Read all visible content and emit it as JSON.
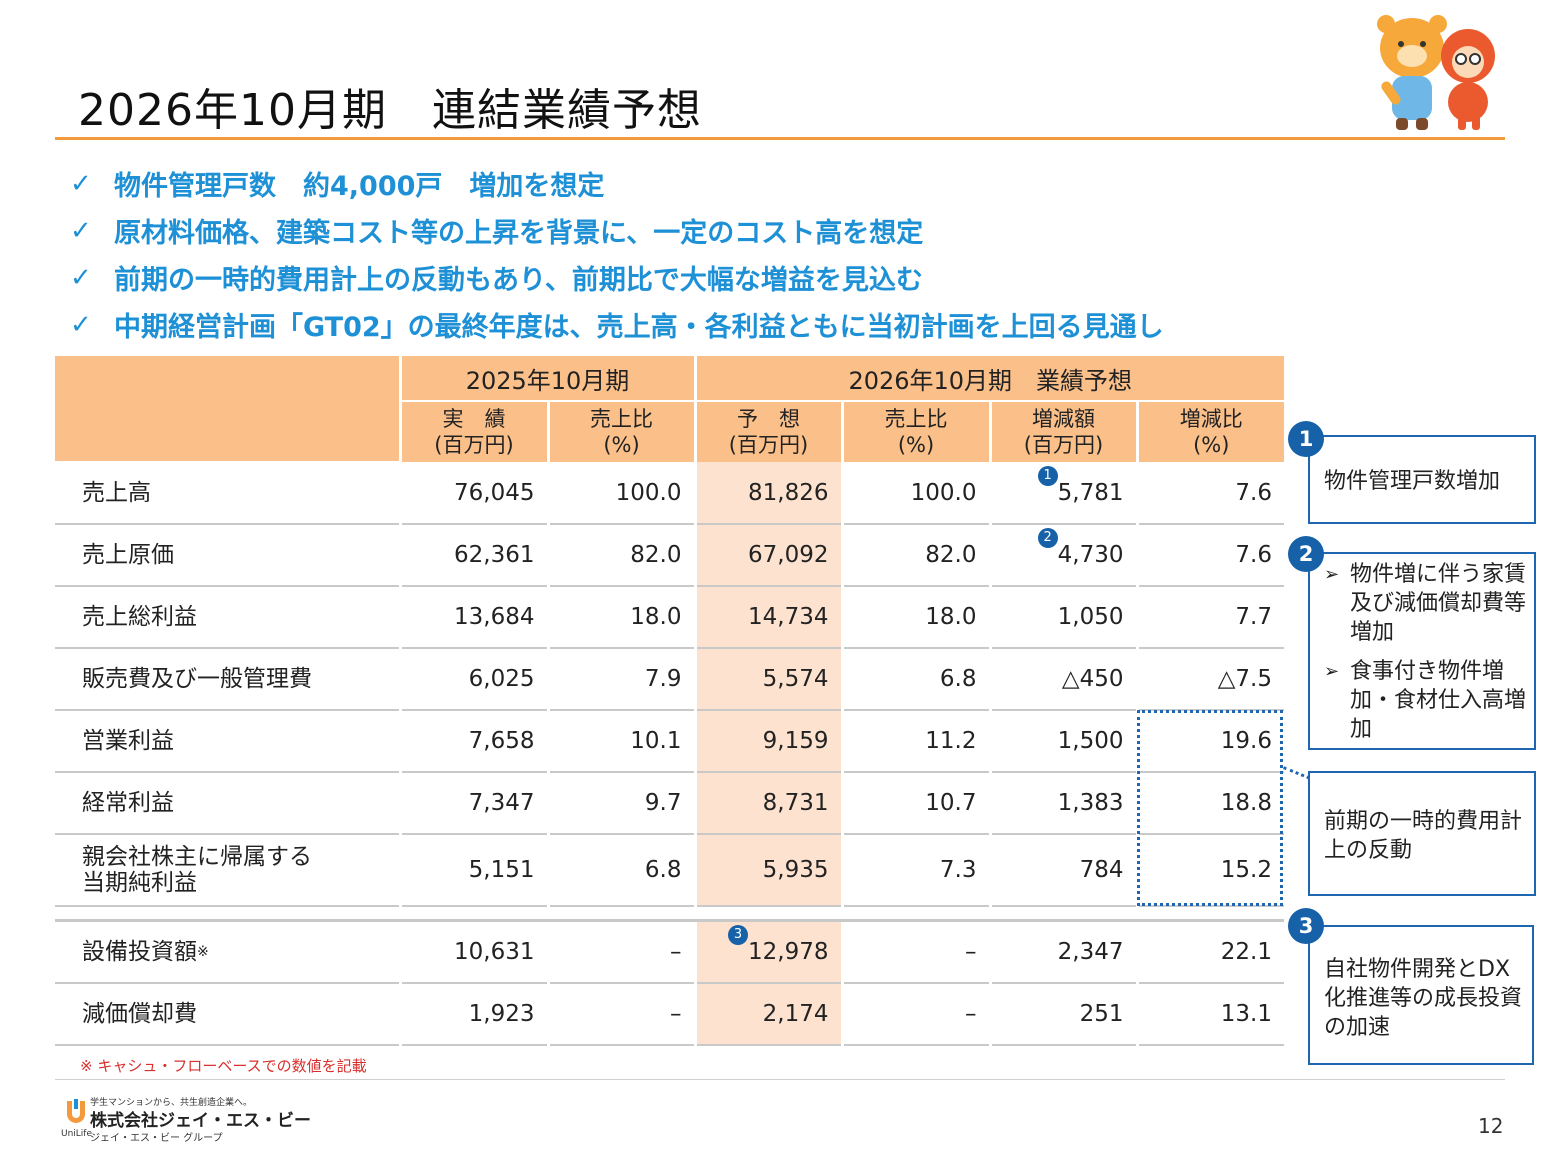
{
  "title": "2026年10月期　連結業績予想",
  "bullets": [
    "物件管理戸数　約4,000戸　増加を想定",
    "原材料価格、建築コスト等の上昇を背景に、一定のコスト高を想定",
    "前期の一時的費用計上の反動もあり、前期比で大幅な増益を見込む",
    "中期経営計画「GT02」の最終年度は、売上高・各利益ともに当初計画を上回る見通し"
  ],
  "check_mark": "✓",
  "table": {
    "group_headers": [
      "2025年10月期",
      "2026年10月期　業績予想"
    ],
    "col_headers": [
      [
        "実　績",
        "(百万円)"
      ],
      [
        "売上比",
        "(%)"
      ],
      [
        "予　想",
        "(百万円)"
      ],
      [
        "売上比",
        "(%)"
      ],
      [
        "増減額",
        "(百万円)"
      ],
      [
        "増減比",
        "(%)"
      ]
    ],
    "rows": [
      {
        "label": "売上高",
        "actual": "76,045",
        "actual_ratio": "100.0",
        "forecast": "81,826",
        "forecast_ratio": "100.0",
        "change": "5,781",
        "change_pct": "7.6",
        "marker": "1"
      },
      {
        "label": "売上原価",
        "actual": "62,361",
        "actual_ratio": "82.0",
        "forecast": "67,092",
        "forecast_ratio": "82.0",
        "change": "4,730",
        "change_pct": "7.6",
        "marker": "2"
      },
      {
        "label": "売上総利益",
        "actual": "13,684",
        "actual_ratio": "18.0",
        "forecast": "14,734",
        "forecast_ratio": "18.0",
        "change": "1,050",
        "change_pct": "7.7"
      },
      {
        "label": "販売費及び一般管理費",
        "actual": "6,025",
        "actual_ratio": "7.9",
        "forecast": "5,574",
        "forecast_ratio": "6.8",
        "change": "△450",
        "change_pct": "△7.5"
      },
      {
        "label": "営業利益",
        "actual": "7,658",
        "actual_ratio": "10.1",
        "forecast": "9,159",
        "forecast_ratio": "11.2",
        "change": "1,500",
        "change_pct": "19.6"
      },
      {
        "label": "経常利益",
        "actual": "7,347",
        "actual_ratio": "9.7",
        "forecast": "8,731",
        "forecast_ratio": "10.7",
        "change": "1,383",
        "change_pct": "18.8"
      },
      {
        "label_line1": "親会社株主に帰属する",
        "label_line2": "当期純利益",
        "actual": "5,151",
        "actual_ratio": "6.8",
        "forecast": "5,935",
        "forecast_ratio": "7.3",
        "change": "784",
        "change_pct": "15.2"
      }
    ],
    "rows2": [
      {
        "label": "設備投資額",
        "label_sup": "※",
        "actual": "10,631",
        "actual_ratio": "–",
        "forecast": "12,978",
        "forecast_ratio": "–",
        "change": "2,347",
        "change_pct": "22.1",
        "marker": "3"
      },
      {
        "label": "減価償却費",
        "actual": "1,923",
        "actual_ratio": "–",
        "forecast": "2,174",
        "forecast_ratio": "–",
        "change": "251",
        "change_pct": "13.1"
      }
    ]
  },
  "note": "※ キャシュ・フローベースでの数値を記載",
  "callouts": {
    "c1": {
      "badge": "1",
      "text": "物件管理戸数増加"
    },
    "c2": {
      "badge": "2",
      "items": [
        "物件増に伴う家賃及び減価償却費等増加",
        "食事付き物件増加・食材仕入高増加"
      ]
    },
    "c_mid": {
      "text": "前期の一時的費用計上の反動"
    },
    "c3": {
      "badge": "3",
      "text": "自社物件開発とDX化推進等の成長投資の加速"
    }
  },
  "footer": {
    "tagline": "学生マンションから、共生創造企業へ。",
    "company": "株式会社ジェイ・エス・ビー",
    "group": "ジェイ・エス・ビー グループ",
    "brand": "UniLife",
    "page_number": "12"
  },
  "colors": {
    "accent_orange": "#f39a3c",
    "header_fill": "#fbc08a",
    "forecast_fill": "#fde3cf",
    "blue": "#1e90d6",
    "navy": "#1661a8",
    "note_red": "#d8302d"
  }
}
